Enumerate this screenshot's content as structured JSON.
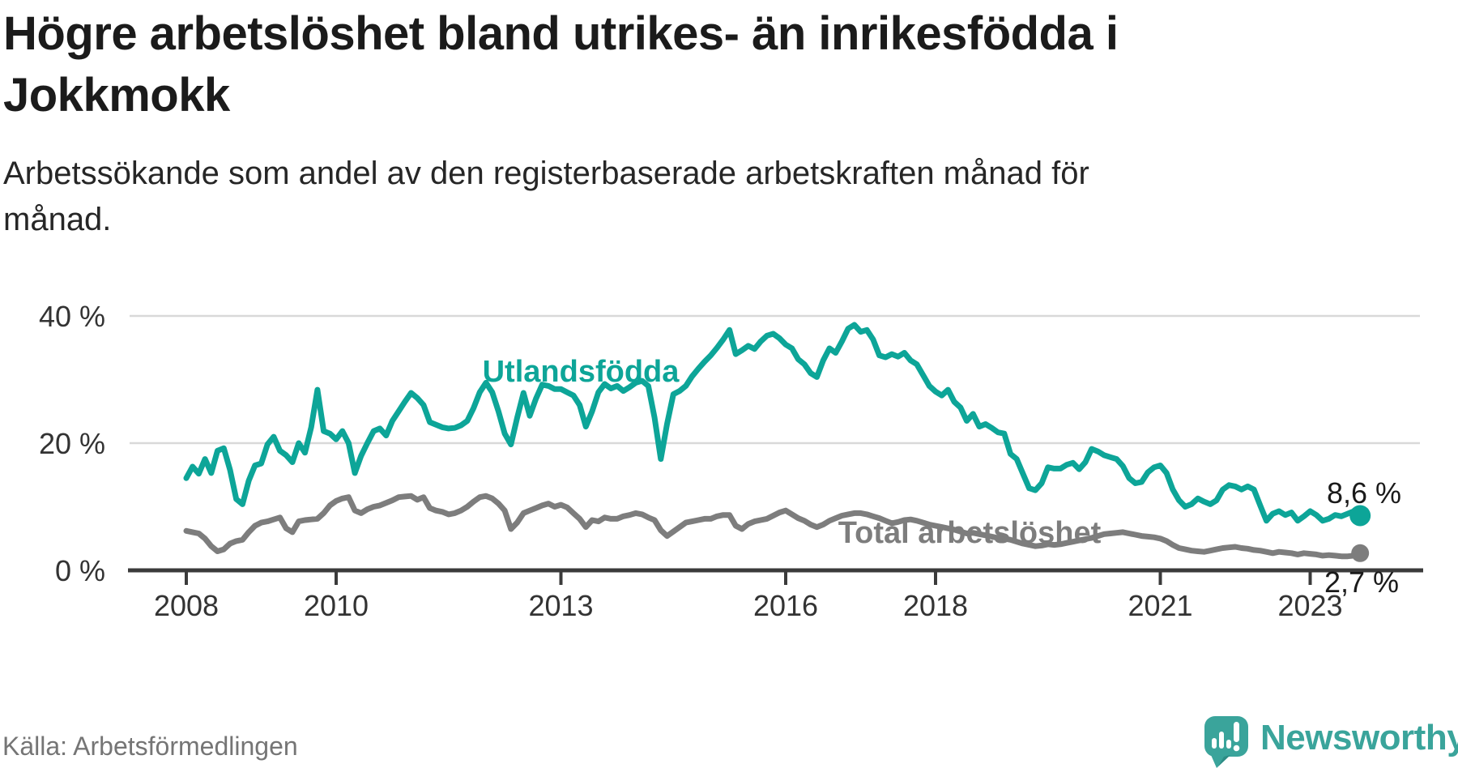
{
  "header": {
    "title": "Högre arbetslöshet bland utrikes- än inrikesfödda i Jokkmokk",
    "title_lines": [
      "Högre arbetslöshet bland utrikes- än inrikesfödda i",
      "Jokkmokk"
    ],
    "subtitle": "Arbetssökande som andel av den registerbaserade arbetskraften månad för månad.",
    "subtitle_lines": [
      "Arbetssökande som andel av den registerbaserade arbetskraften månad för",
      "månad."
    ]
  },
  "chart_data": {
    "type": "line",
    "unit": "%",
    "frequency": "monthly",
    "x_start": "2008-01",
    "x_end": "2023-09",
    "ylim": [
      0,
      40
    ],
    "grid": "horizontal-only",
    "legend_position": "inline-labels",
    "y_ticks": [
      {
        "label": "40 %",
        "value": 40
      },
      {
        "label": "20 %",
        "value": 20
      },
      {
        "label": "0 %",
        "value": 0
      }
    ],
    "x_ticks": [
      {
        "label": "2008",
        "year": 2008
      },
      {
        "label": "2010",
        "year": 2010
      },
      {
        "label": "2013",
        "year": 2013
      },
      {
        "label": "2016",
        "year": 2016
      },
      {
        "label": "2018",
        "year": 2018
      },
      {
        "label": "2021",
        "year": 2021
      },
      {
        "label": "2023",
        "year": 2023
      }
    ],
    "series": [
      {
        "name": "Total arbetslöshet",
        "color": "#7d7d7d",
        "end_label": "2,7 %",
        "end_value": 2.7,
        "values": [
          6.2,
          6.0,
          5.8,
          5.0,
          3.8,
          3.0,
          3.3,
          4.2,
          4.6,
          4.8,
          6.0,
          7.0,
          7.5,
          7.7,
          8.0,
          8.3,
          6.6,
          6.0,
          7.7,
          7.9,
          8.0,
          8.1,
          9.0,
          10.2,
          10.9,
          11.3,
          11.5,
          9.4,
          9.0,
          9.6,
          10.0,
          10.2,
          10.6,
          11.0,
          11.5,
          11.6,
          11.7,
          11.1,
          11.5,
          9.8,
          9.4,
          9.2,
          8.8,
          9.0,
          9.4,
          10.0,
          10.8,
          11.5,
          11.7,
          11.3,
          10.5,
          9.4,
          6.5,
          7.5,
          9.0,
          9.4,
          9.8,
          10.2,
          10.5,
          10.0,
          10.3,
          9.9,
          9.0,
          8.1,
          6.8,
          7.9,
          7.7,
          8.3,
          8.1,
          8.1,
          8.5,
          8.7,
          9.0,
          8.8,
          8.3,
          7.9,
          6.3,
          5.4,
          6.1,
          6.8,
          7.5,
          7.7,
          7.9,
          8.1,
          8.1,
          8.5,
          8.7,
          8.7,
          7.0,
          6.5,
          7.3,
          7.7,
          7.9,
          8.1,
          8.6,
          9.1,
          9.4,
          8.8,
          8.2,
          7.8,
          7.2,
          6.8,
          7.2,
          7.8,
          8.2,
          8.6,
          8.8,
          9.0,
          9.0,
          8.8,
          8.5,
          8.2,
          7.8,
          7.4,
          7.6,
          7.9,
          8.0,
          7.8,
          7.5,
          7.2,
          7.0,
          6.8,
          6.6,
          6.4,
          6.1,
          5.8,
          5.9,
          5.7,
          5.5,
          5.3,
          5.1,
          5.0,
          4.8,
          4.5,
          4.2,
          4.0,
          3.8,
          3.9,
          4.1,
          4.0,
          4.1,
          4.3,
          4.5,
          4.7,
          4.9,
          5.1,
          5.4,
          5.7,
          5.8,
          5.9,
          6.0,
          5.8,
          5.6,
          5.4,
          5.3,
          5.2,
          5.0,
          4.6,
          4.0,
          3.5,
          3.3,
          3.1,
          3.0,
          2.9,
          3.1,
          3.3,
          3.5,
          3.6,
          3.7,
          3.5,
          3.4,
          3.2,
          3.1,
          2.9,
          2.7,
          2.9,
          2.8,
          2.7,
          2.5,
          2.7,
          2.6,
          2.5,
          2.3,
          2.4,
          2.3,
          2.2,
          2.2,
          2.3,
          2.7
        ]
      },
      {
        "name": "Utlandsfödda",
        "color": "#0da598",
        "end_label": "8,6 %",
        "end_value": 8.6,
        "values": [
          14.5,
          16.3,
          15.2,
          17.5,
          15.3,
          18.8,
          19.2,
          15.8,
          11.2,
          10.4,
          14.1,
          16.5,
          16.8,
          19.8,
          21.0,
          18.8,
          18.1,
          17.0,
          20.0,
          18.5,
          22.5,
          28.4,
          21.9,
          21.5,
          20.6,
          21.9,
          20.0,
          15.3,
          18.0,
          20.0,
          21.9,
          22.3,
          21.2,
          23.5,
          25.0,
          26.5,
          27.9,
          27.1,
          26.0,
          23.3,
          22.9,
          22.5,
          22.3,
          22.4,
          22.8,
          23.5,
          25.5,
          28.0,
          29.5,
          28.0,
          25.0,
          21.5,
          19.8,
          24.0,
          27.9,
          24.3,
          27.0,
          29.2,
          29.0,
          28.5,
          28.5,
          28.0,
          27.5,
          26.0,
          22.6,
          25.0,
          28.0,
          29.3,
          28.6,
          29.0,
          28.2,
          28.8,
          29.5,
          29.8,
          29.0,
          24.0,
          17.5,
          23.0,
          27.7,
          28.2,
          29.0,
          30.5,
          31.7,
          32.8,
          33.8,
          35.0,
          36.3,
          37.8,
          34.0,
          34.6,
          35.3,
          34.8,
          36.0,
          36.9,
          37.2,
          36.5,
          35.5,
          34.9,
          33.2,
          32.4,
          31.0,
          30.4,
          33.0,
          34.9,
          34.2,
          36.0,
          38.0,
          38.6,
          37.5,
          37.8,
          36.3,
          33.8,
          33.5,
          34.0,
          33.6,
          34.2,
          33.0,
          32.4,
          30.7,
          29.0,
          28.1,
          27.5,
          28.4,
          26.5,
          25.6,
          23.5,
          24.6,
          22.6,
          23.0,
          22.4,
          21.7,
          21.5,
          18.3,
          17.5,
          15.2,
          12.9,
          12.6,
          13.7,
          16.2,
          16.0,
          16.0,
          16.6,
          16.9,
          15.9,
          17.0,
          19.1,
          18.7,
          18.1,
          17.8,
          17.5,
          16.4,
          14.5,
          13.7,
          13.9,
          15.4,
          16.2,
          16.5,
          15.3,
          12.7,
          11.0,
          10.0,
          10.4,
          11.3,
          10.8,
          10.4,
          11.0,
          12.7,
          13.4,
          13.2,
          12.7,
          13.2,
          12.7,
          10.2,
          7.8,
          8.9,
          9.3,
          8.7,
          9.1,
          7.8,
          8.5,
          9.3,
          8.7,
          7.8,
          8.1,
          8.7,
          8.5,
          8.9,
          9.3,
          8.6
        ]
      }
    ]
  },
  "footer": {
    "source": "Källa: Arbetsförmedlingen",
    "brand": "Newsworthy"
  },
  "colors": {
    "series_utlandsfodda": "#0da598",
    "series_total": "#7d7d7d",
    "gridline": "#d9d9d9",
    "axis": "#3b3b3b",
    "axis_text": "#333333",
    "end_label_text": "#1a1a1a",
    "title_text": "#1b1b1b",
    "source_text": "#757575",
    "brand_teal": "#3aa49b",
    "brand_tail_dark": "#2e8c85"
  }
}
